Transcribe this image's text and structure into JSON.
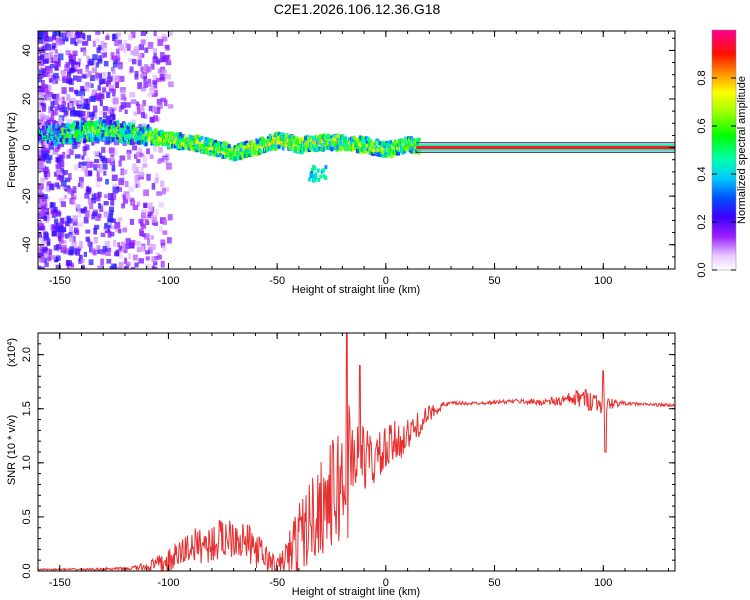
{
  "title": "C2E1.2026.106.12.36.G18",
  "chart_data": [
    {
      "type": "heatmap",
      "xlabel": "Height of straight line (km)",
      "ylabel": "Frequency (Hz)",
      "xlim": [
        -160,
        133
      ],
      "ylim": [
        -50,
        48
      ],
      "xticks": [
        -150,
        -100,
        -50,
        0,
        50,
        100
      ],
      "yticks": [
        -40,
        -20,
        0,
        20,
        40
      ],
      "colorbar": {
        "label": "Normalized spectral amplitude",
        "range": [
          0,
          1
        ],
        "ticks": [
          "0.0",
          "0.2",
          "0.4",
          "0.6",
          "0.8"
        ]
      },
      "ridge": {
        "x": [
          -158,
          -145,
          -130,
          -120,
          -110,
          -100,
          -90,
          -80,
          -70,
          -60,
          -50,
          -40,
          -30,
          -20,
          -10,
          0,
          10,
          20,
          50,
          100,
          133
        ],
        "y": [
          5,
          6,
          7,
          6,
          5,
          3,
          2,
          0,
          -2,
          0,
          3,
          1,
          2,
          2,
          1,
          -1,
          1,
          0,
          0,
          0,
          0
        ]
      },
      "grid": false
    },
    {
      "type": "line",
      "xlabel": "Height of straight line (km)",
      "ylabel": "SNR (10 * v/v)",
      "yscale_label": "(x10",
      "yscale_exp": "4",
      "xlim": [
        -160,
        133
      ],
      "ylim": [
        0,
        22000
      ],
      "xticks": [
        -150,
        -100,
        -50,
        0,
        50,
        100
      ],
      "yticks": [
        {
          "value": 0,
          "label": "0.0"
        },
        {
          "value": 5000,
          "label": "0.5"
        },
        {
          "value": 10000,
          "label": "1.0"
        },
        {
          "value": 15000,
          "label": "1.5"
        },
        {
          "value": 20000,
          "label": "2.0"
        }
      ],
      "series": [
        {
          "color": "#e83030",
          "x": [
            -160,
            -140,
            -120,
            -110,
            -100,
            -90,
            -80,
            -70,
            -60,
            -55,
            -50,
            -45,
            -40,
            -35,
            -30,
            -25,
            -20,
            -17,
            -15,
            -10,
            -5,
            0,
            5,
            10,
            15,
            20,
            25,
            30,
            40,
            50,
            60,
            70,
            80,
            90,
            95,
            100,
            105,
            110,
            120,
            133
          ],
          "y": [
            150,
            150,
            200,
            400,
            800,
            2300,
            2500,
            3500,
            2000,
            1200,
            400,
            1500,
            3000,
            4500,
            6000,
            7000,
            8000,
            9500,
            11000,
            10500,
            10200,
            11000,
            12000,
            12500,
            13500,
            14500,
            15200,
            15500,
            15500,
            15600,
            15700,
            15600,
            15700,
            16000,
            15800,
            15400,
            15500,
            15500,
            15400,
            15300
          ],
          "amplitude": [
            80,
            80,
            150,
            400,
            1200,
            1600,
            1800,
            2200,
            1700,
            1300,
            700,
            2000,
            3500,
            4000,
            4500,
            5000,
            6000,
            7000,
            4000,
            3000,
            2500,
            2300,
            2000,
            1500,
            1200,
            800,
            400,
            200,
            150,
            150,
            200,
            300,
            500,
            900,
            1100,
            900,
            400,
            150,
            150,
            150
          ],
          "peaks": [
            {
              "x": -18,
              "y": 22500
            },
            {
              "x": -12,
              "y": 19000
            },
            {
              "x": 100,
              "y": 18500
            },
            {
              "x": 101,
              "y": 11000
            }
          ]
        }
      ],
      "grid": false
    }
  ]
}
